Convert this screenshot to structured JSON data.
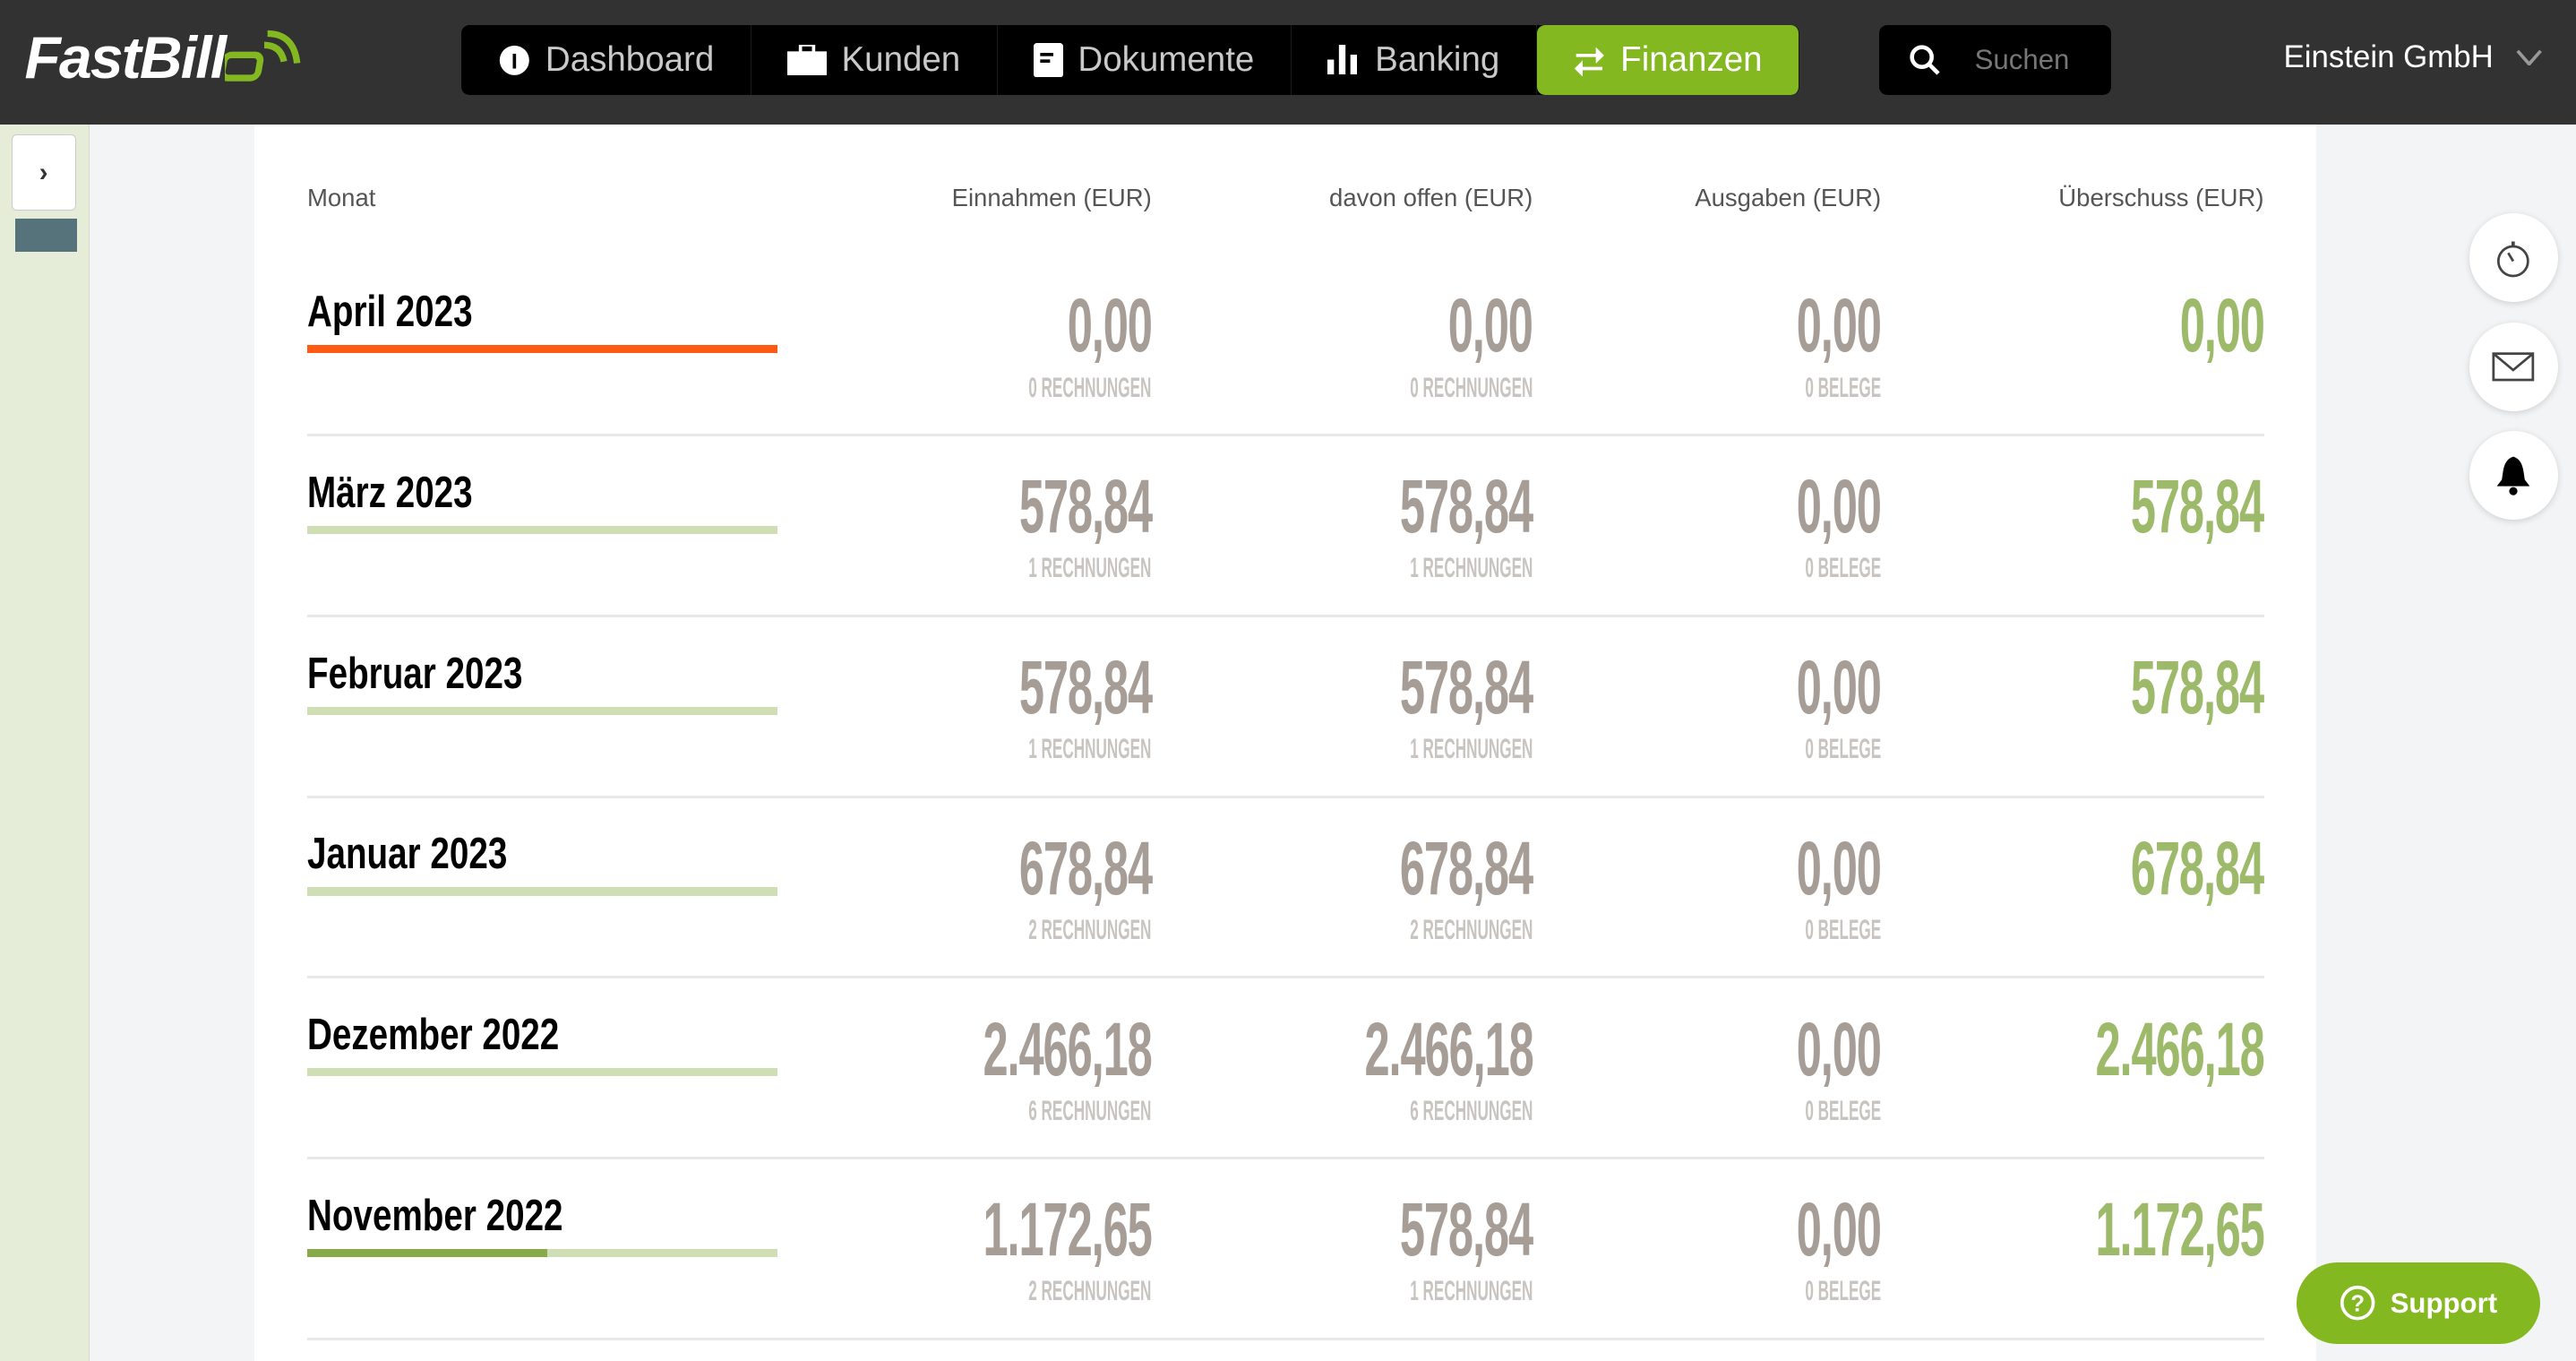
{
  "header": {
    "logo": "FastBill",
    "nav": [
      {
        "label": "Dashboard",
        "icon": "gauge-icon"
      },
      {
        "label": "Kunden",
        "icon": "briefcase-icon"
      },
      {
        "label": "Dokumente",
        "icon": "document-icon"
      },
      {
        "label": "Banking",
        "icon": "bar-chart-icon"
      },
      {
        "label": "Finanzen",
        "icon": "swap-arrows-icon",
        "active": true
      }
    ],
    "search_placeholder": "Suchen",
    "company": "Einstein GmbH"
  },
  "colors": {
    "header": "#323232",
    "accent": "#84b820",
    "current_bar": "#ff5a14",
    "value_gray": "#a69d96",
    "value_green": "#9dba6a"
  },
  "table": {
    "headers": [
      "Monat",
      "Einnahmen (EUR)",
      "davon offen (EUR)",
      "Ausgaben (EUR)",
      "Überschuss (EUR)"
    ],
    "rows": [
      {
        "month": "April 2023",
        "progress": 1,
        "current": true,
        "einnahmen": "0,00",
        "einnahmen_sub": "0 RECHNUNGEN",
        "offen": "0,00",
        "offen_sub": "0 RECHNUNGEN",
        "ausgaben": "0,00",
        "ausgaben_sub": "0 BELEGE",
        "ueberschuss": "0,00"
      },
      {
        "month": "März 2023",
        "progress": 0,
        "einnahmen": "578,84",
        "einnahmen_sub": "1 RECHNUNGEN",
        "offen": "578,84",
        "offen_sub": "1 RECHNUNGEN",
        "ausgaben": "0,00",
        "ausgaben_sub": "0 BELEGE",
        "ueberschuss": "578,84"
      },
      {
        "month": "Februar 2023",
        "progress": 0,
        "einnahmen": "578,84",
        "einnahmen_sub": "1 RECHNUNGEN",
        "offen": "578,84",
        "offen_sub": "1 RECHNUNGEN",
        "ausgaben": "0,00",
        "ausgaben_sub": "0 BELEGE",
        "ueberschuss": "578,84"
      },
      {
        "month": "Januar 2023",
        "progress": 0,
        "einnahmen": "678,84",
        "einnahmen_sub": "2 RECHNUNGEN",
        "offen": "678,84",
        "offen_sub": "2 RECHNUNGEN",
        "ausgaben": "0,00",
        "ausgaben_sub": "0 BELEGE",
        "ueberschuss": "678,84"
      },
      {
        "month": "Dezember 2022",
        "progress": 0,
        "einnahmen": "2.466,18",
        "einnahmen_sub": "6 RECHNUNGEN",
        "offen": "2.466,18",
        "offen_sub": "6 RECHNUNGEN",
        "ausgaben": "0,00",
        "ausgaben_sub": "0 BELEGE",
        "ueberschuss": "2.466,18"
      },
      {
        "month": "November 2022",
        "progress": 0.51,
        "einnahmen": "1.172,65",
        "einnahmen_sub": "2 RECHNUNGEN",
        "offen": "578,84",
        "offen_sub": "1 RECHNUNGEN",
        "ausgaben": "0,00",
        "ausgaben_sub": "0 BELEGE",
        "ueberschuss": "1.172,65"
      }
    ]
  },
  "side_actions": [
    "stopwatch-icon",
    "mail-icon",
    "bell-icon"
  ],
  "support": {
    "label": "Support"
  }
}
